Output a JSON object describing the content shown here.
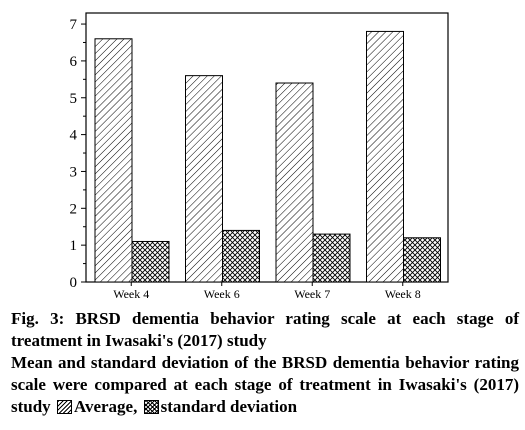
{
  "chart_data": {
    "type": "bar",
    "categories": [
      "Week 4",
      "Week 6",
      "Week 7",
      "Week 8"
    ],
    "series": [
      {
        "name": "Average",
        "values": [
          6.6,
          5.6,
          5.4,
          6.8
        ],
        "pattern": "diagonal-hatch"
      },
      {
        "name": "standard deviation",
        "values": [
          1.1,
          1.4,
          1.3,
          1.2
        ],
        "pattern": "cross-hatch"
      }
    ],
    "yticks": [
      "0",
      "1",
      "2",
      "3",
      "4",
      "5",
      "6",
      "7"
    ],
    "ylim": [
      0,
      7.3
    ],
    "grid": false,
    "xlabel": "",
    "ylabel": ""
  },
  "caption": {
    "title": "Fig. 3: BRSD dementia behavior rating scale at each stage of treatment in Iwasaki's (2017) study",
    "note_text": "Mean and standard deviation of the BRSD dementia behavior rating scale were compared at each stage of treatment in Iwasaki's (2017) study",
    "legend_average": "Average,",
    "legend_sd": "standard deviation"
  }
}
